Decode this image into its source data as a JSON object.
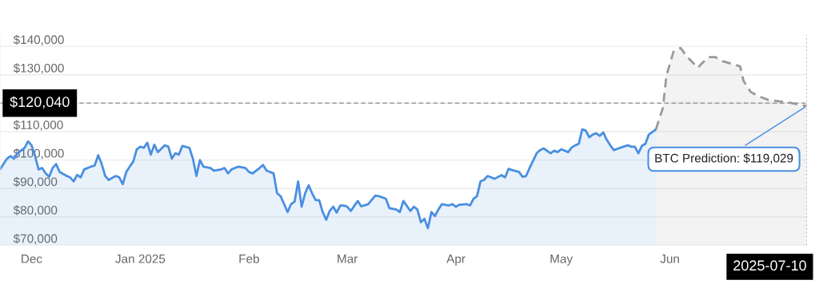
{
  "chart_data": {
    "type": "area",
    "xlim": [
      "2024-11-22",
      "2025-07-10"
    ],
    "xticks": [
      {
        "value": "2024-12-01",
        "label": "Dec"
      },
      {
        "value": "2025-01-01",
        "label": "Jan 2025"
      },
      {
        "value": "2025-02-01",
        "label": "Feb"
      },
      {
        "value": "2025-03-01",
        "label": "Mar"
      },
      {
        "value": "2025-04-01",
        "label": "Apr"
      },
      {
        "value": "2025-05-01",
        "label": "May"
      },
      {
        "value": "2025-06-01",
        "label": "Jun"
      }
    ],
    "ylim": [
      70000,
      144000
    ],
    "yticks": [
      {
        "value": 70000,
        "label": "$70,000"
      },
      {
        "value": 80000,
        "label": "$80,000"
      },
      {
        "value": 90000,
        "label": "$90,000"
      },
      {
        "value": 100000,
        "label": "$100,000"
      },
      {
        "value": 110000,
        "label": "$110,000"
      },
      {
        "value": 120000,
        "label": null
      },
      {
        "value": 130000,
        "label": "$130,000"
      },
      {
        "value": 140000,
        "label": "$140,000"
      }
    ],
    "grid": "y",
    "series": [
      {
        "color": "#4a8fe0",
        "line_style": "solid",
        "x": [
          "2024-11-22",
          "2024-11-24",
          "2024-11-25",
          "2024-11-26",
          "2024-11-27",
          "2024-11-29",
          "2024-11-30",
          "2024-12-01",
          "2024-12-02",
          "2024-12-03",
          "2024-12-04",
          "2024-12-05",
          "2024-12-06",
          "2024-12-07",
          "2024-12-08",
          "2024-12-09",
          "2024-12-11",
          "2024-12-12",
          "2024-12-13",
          "2024-12-14",
          "2024-12-15",
          "2024-12-16",
          "2024-12-18",
          "2024-12-19",
          "2024-12-20",
          "2024-12-21",
          "2024-12-22",
          "2024-12-23",
          "2024-12-25",
          "2024-12-26",
          "2024-12-27",
          "2024-12-28",
          "2024-12-29",
          "2024-12-30",
          "2024-12-31",
          "2025-01-01",
          "2025-01-02",
          "2025-01-03",
          "2025-01-04",
          "2025-01-05",
          "2025-01-06",
          "2025-01-08",
          "2025-01-09",
          "2025-01-10",
          "2025-01-11",
          "2025-01-12",
          "2025-01-13",
          "2025-01-15",
          "2025-01-16",
          "2025-01-17",
          "2025-01-18",
          "2025-01-19",
          "2025-01-21",
          "2025-01-22",
          "2025-01-24",
          "2025-01-25",
          "2025-01-26",
          "2025-01-27",
          "2025-01-29",
          "2025-01-31",
          "2025-02-01",
          "2025-02-02",
          "2025-02-04",
          "2025-02-05",
          "2025-02-06",
          "2025-02-08",
          "2025-02-09",
          "2025-02-10",
          "2025-02-11",
          "2025-02-12",
          "2025-02-13",
          "2025-02-14",
          "2025-02-15",
          "2025-02-16",
          "2025-02-17",
          "2025-02-18",
          "2025-02-19",
          "2025-02-20",
          "2025-02-21",
          "2025-02-22",
          "2025-02-23",
          "2025-02-24",
          "2025-02-25",
          "2025-02-26",
          "2025-02-27",
          "2025-02-28",
          "2025-03-01",
          "2025-03-02",
          "2025-03-04",
          "2025-03-05",
          "2025-03-07",
          "2025-03-09",
          "2025-03-10",
          "2025-03-12",
          "2025-03-13",
          "2025-03-15",
          "2025-03-16",
          "2025-03-17",
          "2025-03-19",
          "2025-03-20",
          "2025-03-21",
          "2025-03-22",
          "2025-03-23",
          "2025-03-24",
          "2025-03-25",
          "2025-03-26",
          "2025-03-27",
          "2025-03-28",
          "2025-03-30",
          "2025-03-31",
          "2025-04-01",
          "2025-04-02",
          "2025-04-04",
          "2025-04-05",
          "2025-04-06",
          "2025-04-07",
          "2025-04-08",
          "2025-04-09",
          "2025-04-10",
          "2025-04-11",
          "2025-04-12",
          "2025-04-14",
          "2025-04-15",
          "2025-04-16",
          "2025-04-17",
          "2025-04-19",
          "2025-04-20",
          "2025-04-21",
          "2025-04-22",
          "2025-04-24",
          "2025-04-25",
          "2025-04-26",
          "2025-04-28",
          "2025-04-29",
          "2025-04-30",
          "2025-05-01",
          "2025-05-03",
          "2025-05-04",
          "2025-05-05",
          "2025-05-06",
          "2025-05-07",
          "2025-05-08",
          "2025-05-09",
          "2025-05-10",
          "2025-05-11",
          "2025-05-12",
          "2025-05-13",
          "2025-05-14",
          "2025-05-15",
          "2025-05-16",
          "2025-05-18",
          "2025-05-20",
          "2025-05-21",
          "2025-05-22",
          "2025-05-23",
          "2025-05-24",
          "2025-05-25",
          "2025-05-26",
          "2025-05-27",
          "2025-05-28"
        ],
        "values": [
          96700,
          100500,
          101400,
          100500,
          102400,
          104300,
          106600,
          105200,
          101400,
          96700,
          97200,
          95300,
          94100,
          97200,
          98600,
          95800,
          94400,
          93900,
          92500,
          94800,
          93900,
          96700,
          97700,
          98100,
          101700,
          98600,
          94400,
          93000,
          94400,
          93900,
          91500,
          95800,
          97700,
          99500,
          103800,
          104700,
          104300,
          106100,
          101900,
          105400,
          102800,
          105200,
          104700,
          100500,
          102400,
          101900,
          105000,
          104300,
          100500,
          94400,
          100000,
          97700,
          97200,
          96300,
          96700,
          97200,
          95300,
          96700,
          97700,
          97200,
          95800,
          95300,
          97200,
          98300,
          96300,
          95300,
          88300,
          87300,
          84500,
          81700,
          84500,
          85400,
          92500,
          83600,
          88300,
          91100,
          88300,
          85900,
          85900,
          81700,
          79000,
          82100,
          83600,
          81500,
          84000,
          84000,
          83600,
          82100,
          85600,
          83700,
          84500,
          87500,
          87300,
          86400,
          83100,
          82600,
          81700,
          85600,
          82100,
          83600,
          82600,
          78100,
          79300,
          76000,
          81700,
          80300,
          82600,
          84500,
          84000,
          84500,
          83600,
          84300,
          84500,
          84000,
          86400,
          87300,
          92500,
          93000,
          94400,
          93900,
          93400,
          94700,
          93900,
          96900,
          96500,
          95800,
          94100,
          94400,
          97200,
          102400,
          103500,
          104100,
          102400,
          103300,
          102800,
          103800,
          102800,
          104400,
          105200,
          105700,
          110800,
          110400,
          108000,
          109000,
          109400,
          108500,
          109700,
          107100,
          105200,
          103500,
          104400,
          105200,
          104700,
          104700,
          102400,
          105000,
          105700,
          109000,
          109900,
          110800
        ]
      },
      {
        "color": "#999999",
        "line_style": "dashed",
        "x": [
          "2025-05-28",
          "2025-05-30",
          "2025-05-31",
          "2025-06-02",
          "2025-06-04",
          "2025-06-06",
          "2025-06-09",
          "2025-06-10",
          "2025-06-12",
          "2025-06-14",
          "2025-06-16",
          "2025-06-21",
          "2025-06-22",
          "2025-06-24",
          "2025-06-26",
          "2025-06-29",
          "2025-07-05",
          "2025-07-10"
        ],
        "values": [
          110800,
          118400,
          129700,
          138100,
          139500,
          136200,
          132500,
          133900,
          136200,
          136200,
          134800,
          133000,
          127800,
          124000,
          122600,
          121200,
          120200,
          119029
        ]
      }
    ],
    "ref_lines": [
      {
        "axis": "y",
        "value": 120040,
        "label": "$120,040",
        "color": "#999999",
        "line_style": "dashed"
      },
      {
        "axis": "x",
        "value": "2025-07-10",
        "label": "2025-07-10",
        "color": "#999999",
        "line_style": "dotted"
      }
    ],
    "annotations": [
      {
        "text": "BTC Prediction: $119,029",
        "x": "2025-07-10",
        "y": 119029
      }
    ]
  }
}
